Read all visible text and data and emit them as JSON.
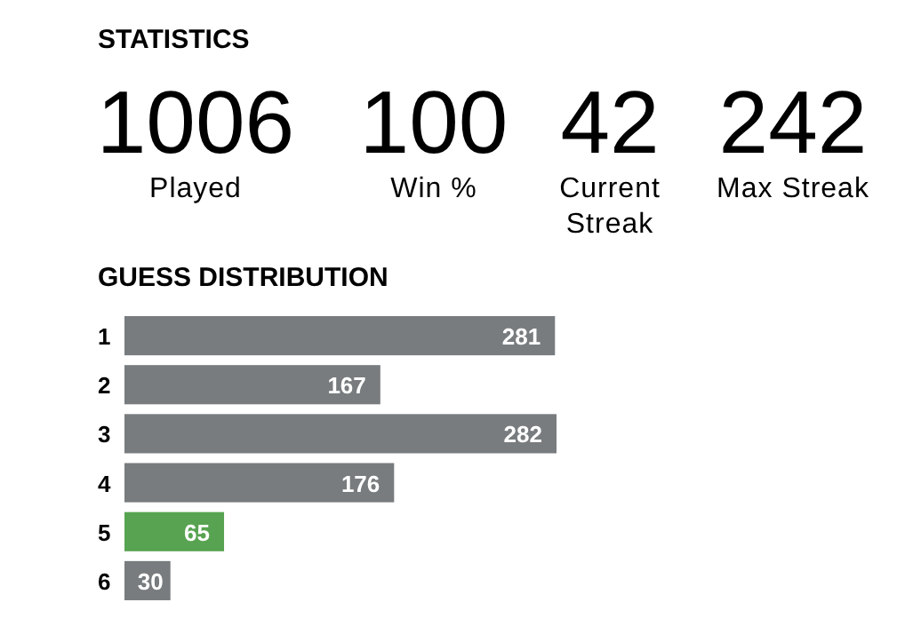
{
  "chart_data": [
    {
      "type": "other",
      "title": "STATISTICS",
      "annotations": [
        "1006",
        "Played",
        "100",
        "Win %",
        "42",
        "Current Streak",
        "242",
        "Max Streak"
      ]
    },
    {
      "type": "bar",
      "orientation": "horizontal",
      "title": "GUESS DISTRIBUTION",
      "categories": [
        "1",
        "2",
        "3",
        "4",
        "5",
        "6"
      ],
      "values": [
        281,
        167,
        282,
        176,
        65,
        30
      ],
      "colors": [
        "#787c7e",
        "#787c7e",
        "#787c7e",
        "#787c7e",
        "#58a351",
        "#787c7e"
      ],
      "data_labels": true
    }
  ]
}
